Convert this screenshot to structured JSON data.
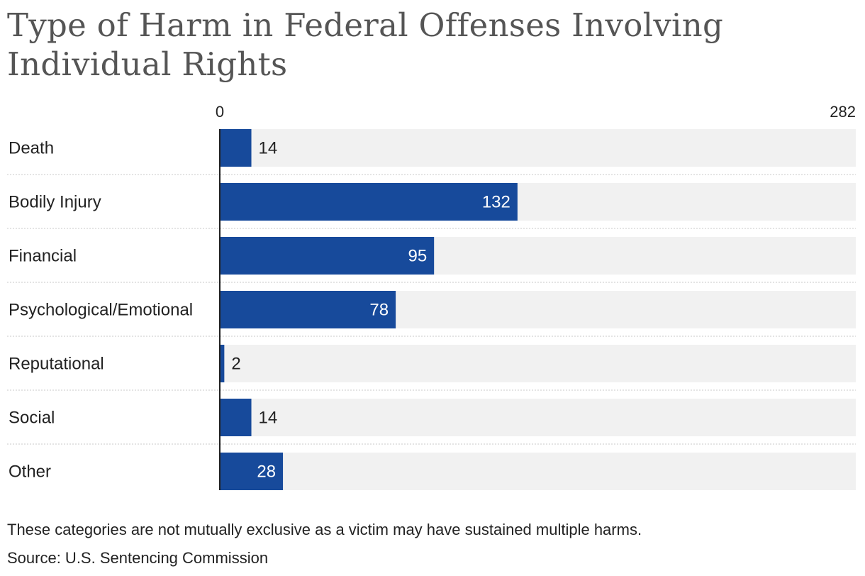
{
  "chart_data": {
    "type": "bar",
    "orientation": "horizontal",
    "title": "Type of Harm in Federal Offenses Involving Individual Rights",
    "categories": [
      "Death",
      "Bodily Injury",
      "Financial",
      "Psychological/Emotional",
      "Reputational",
      "Social",
      "Other"
    ],
    "values": [
      14,
      132,
      95,
      78,
      2,
      14,
      28
    ],
    "xlim": [
      0,
      282
    ],
    "axis_labels": [
      "0",
      "282"
    ],
    "xlabel": "",
    "ylabel": "",
    "colors": {
      "bar": "#174a9b",
      "track": "#f1f1f1",
      "axis": "#222222",
      "divider": "#c8c8c8"
    },
    "note": "These categories are not mutually exclusive as a victim may have sustained multiple harms.",
    "source": "Source: U.S. Sentencing Commission"
  }
}
